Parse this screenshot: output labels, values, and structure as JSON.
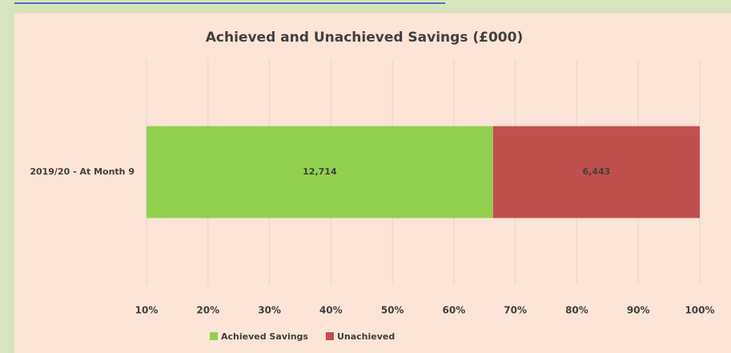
{
  "chart_data": {
    "type": "bar",
    "orientation": "horizontal",
    "stacking": "percent",
    "title": "Achieved and Unachieved Savings (£000)",
    "categories": [
      "2019/20 - At Month 9"
    ],
    "series": [
      {
        "name": "Achieved Savings",
        "color": "#92d050",
        "values": [
          12714
        ],
        "value_labels": [
          "12,714"
        ]
      },
      {
        "name": "Unachieved",
        "color": "#c0504d",
        "values": [
          6443
        ],
        "value_labels": [
          "6,443"
        ]
      }
    ],
    "xlim": [
      10,
      100
    ],
    "xticks": [
      {
        "value": 10,
        "label": "10%"
      },
      {
        "value": 20,
        "label": "20%"
      },
      {
        "value": 30,
        "label": "30%"
      },
      {
        "value": 40,
        "label": "40%"
      },
      {
        "value": 50,
        "label": "50%"
      },
      {
        "value": 60,
        "label": "60%"
      },
      {
        "value": 70,
        "label": "70%"
      },
      {
        "value": 80,
        "label": "80%"
      },
      {
        "value": 90,
        "label": "90%"
      },
      {
        "value": 100,
        "label": "100%"
      }
    ],
    "grid": true,
    "legend": "bottom"
  }
}
